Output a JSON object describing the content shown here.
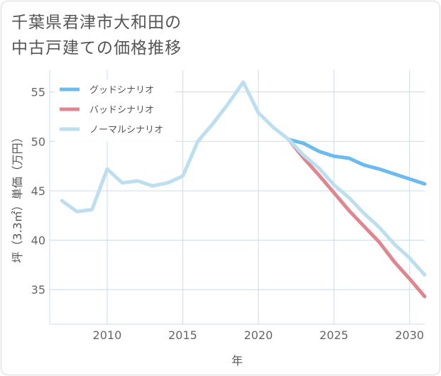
{
  "title_lines": [
    "千葉県君津市大和田の",
    "中古戸建ての価格推移"
  ],
  "chart_data": {
    "type": "line",
    "xlabel": "年",
    "ylabel": "坪（3.3㎡）単価（万円）",
    "xlim": [
      2006.2,
      2031
    ],
    "ylim": [
      31.5,
      57.2
    ],
    "x_ticks": [
      2010,
      2015,
      2020,
      2025,
      2030
    ],
    "y_ticks": [
      35,
      40,
      45,
      50,
      55
    ],
    "legend_position": "top-left",
    "series": [
      {
        "name": "グッドシナリオ",
        "color": "#6bbbef",
        "x": [
          2022,
          2023,
          2024,
          2025,
          2026,
          2027,
          2028,
          2029,
          2030,
          2031
        ],
        "values": [
          50.2,
          49.8,
          49.0,
          48.5,
          48.3,
          47.6,
          47.2,
          46.7,
          46.2,
          45.7
        ]
      },
      {
        "name": "バッドシナリオ",
        "color": "#e0868f",
        "x": [
          2022,
          2023,
          2024,
          2025,
          2026,
          2027,
          2028,
          2029,
          2030,
          2031
        ],
        "values": [
          50.2,
          48.3,
          46.6,
          44.8,
          43.0,
          41.4,
          39.8,
          37.8,
          36.1,
          34.3
        ]
      },
      {
        "name": "ノーマルシナリオ",
        "color": "#bcdff0",
        "x": [
          2007,
          2008,
          2009,
          2010,
          2011,
          2012,
          2013,
          2014,
          2015,
          2016,
          2017,
          2018,
          2019,
          2020,
          2021,
          2022,
          2023,
          2024,
          2025,
          2026,
          2027,
          2028,
          2029,
          2030,
          2031
        ],
        "values": [
          44.0,
          42.9,
          43.1,
          47.2,
          45.8,
          46.0,
          45.5,
          45.8,
          46.5,
          50.0,
          51.8,
          53.8,
          56.0,
          52.9,
          51.4,
          50.2,
          48.6,
          47.3,
          45.6,
          44.3,
          42.7,
          41.3,
          39.6,
          38.2,
          36.5
        ]
      }
    ]
  }
}
